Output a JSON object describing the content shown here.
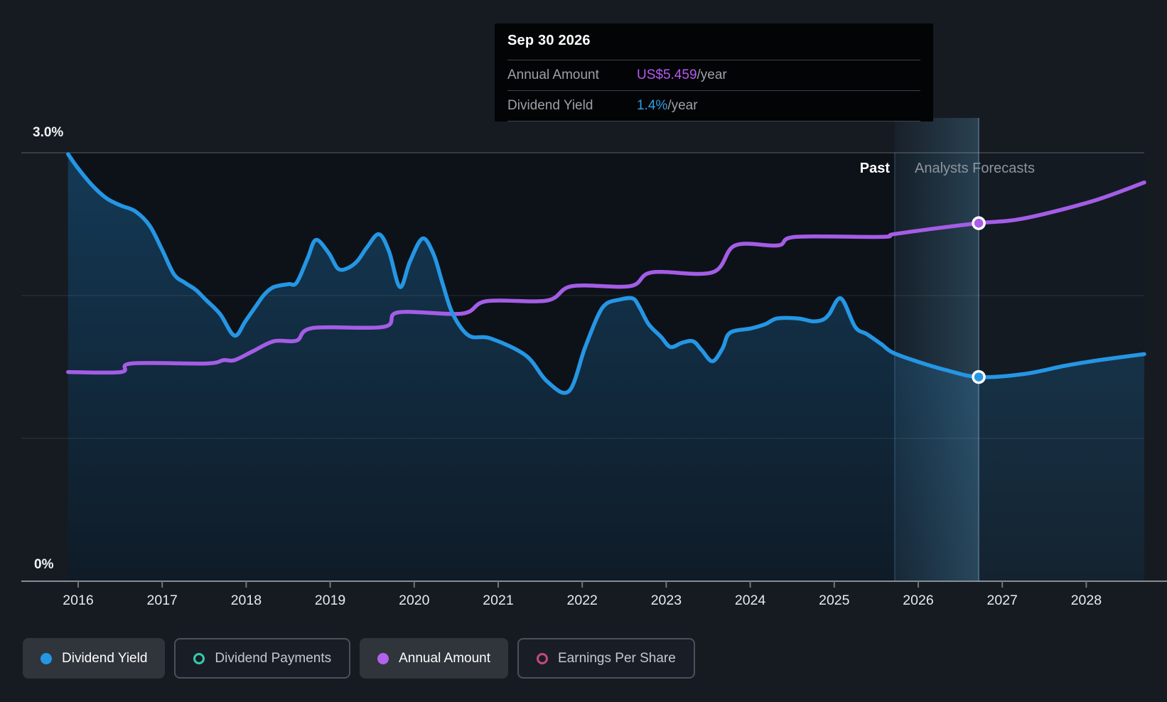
{
  "tooltip": {
    "date": "Sep 30 2026",
    "rows": [
      {
        "label": "Annual Amount",
        "value": "US$5.459",
        "suffix": "/year",
        "color": "#b55af2"
      },
      {
        "label": "Dividend Yield",
        "value": "1.4%",
        "suffix": "/year",
        "color": "#2da0ea"
      }
    ]
  },
  "annotations": {
    "past": "Past",
    "forecast": "Analysts Forecasts"
  },
  "axis": {
    "y_top_label": "3.0%",
    "y_bottom_label": "0%",
    "years": [
      "2016",
      "2017",
      "2018",
      "2019",
      "2020",
      "2021",
      "2022",
      "2023",
      "2024",
      "2025",
      "2026",
      "2027",
      "2028"
    ]
  },
  "legend": {
    "items": [
      {
        "label": "Dividend Yield",
        "swatch": "filled",
        "color": "#2596e4",
        "active": true
      },
      {
        "label": "Dividend Payments",
        "swatch": "ring",
        "color": "#38c9b0",
        "active": false
      },
      {
        "label": "Annual Amount",
        "swatch": "filled",
        "color": "#b163ea",
        "active": true
      },
      {
        "label": "Earnings Per Share",
        "swatch": "ring",
        "color": "#c4497e",
        "active": false
      }
    ]
  },
  "colors": {
    "background": "#161b22",
    "plot_background": "#0d1219",
    "dividend_yield_line": "#2596e4",
    "annual_amount_line": "#a45de6",
    "gridline": "rgba(255,255,255,0.10)",
    "top_gridline": "rgba(255,255,255,0.30)",
    "axis_line": "#878d94",
    "tick_label": "#e7eaed"
  },
  "chart_data": {
    "type": "line",
    "x_axis": {
      "tick_years": [
        2016,
        2017,
        2018,
        2019,
        2020,
        2021,
        2022,
        2023,
        2024,
        2025,
        2026,
        2027,
        2028
      ],
      "range": [
        2015.88,
        2028.69
      ]
    },
    "y_axis": {
      "unit": "%",
      "range": [
        0,
        3
      ],
      "gridlines_pct": [
        0,
        1,
        2,
        3
      ],
      "top_label": "3.0%",
      "bottom_label": "0%"
    },
    "past_forecast_divider_year": 2025.72,
    "selected_point": {
      "date": "Sep 30 2026",
      "year": 2026.72,
      "annual_amount_usd": 5.459,
      "dividend_yield_pct": 1.4
    },
    "series": [
      {
        "name": "Dividend Yield",
        "unit": "%",
        "color": "#2596e4",
        "points": [
          [
            2015.88,
            2.99
          ],
          [
            2016.0,
            2.89
          ],
          [
            2016.17,
            2.77
          ],
          [
            2016.34,
            2.68
          ],
          [
            2016.51,
            2.63
          ],
          [
            2016.68,
            2.59
          ],
          [
            2016.85,
            2.49
          ],
          [
            2017.0,
            2.32
          ],
          [
            2017.14,
            2.15
          ],
          [
            2017.27,
            2.09
          ],
          [
            2017.4,
            2.04
          ],
          [
            2017.52,
            1.97
          ],
          [
            2017.69,
            1.87
          ],
          [
            2017.86,
            1.72
          ],
          [
            2017.99,
            1.82
          ],
          [
            2018.12,
            1.93
          ],
          [
            2018.22,
            2.01
          ],
          [
            2018.33,
            2.06
          ],
          [
            2018.5,
            2.08
          ],
          [
            2018.6,
            2.09
          ],
          [
            2018.73,
            2.26
          ],
          [
            2018.83,
            2.39
          ],
          [
            2018.98,
            2.3
          ],
          [
            2019.09,
            2.19
          ],
          [
            2019.2,
            2.19
          ],
          [
            2019.32,
            2.24
          ],
          [
            2019.44,
            2.34
          ],
          [
            2019.58,
            2.43
          ],
          [
            2019.7,
            2.31
          ],
          [
            2019.83,
            2.06
          ],
          [
            2019.95,
            2.24
          ],
          [
            2020.1,
            2.4
          ],
          [
            2020.23,
            2.29
          ],
          [
            2020.34,
            2.08
          ],
          [
            2020.46,
            1.87
          ],
          [
            2020.65,
            1.72
          ],
          [
            2020.91,
            1.7
          ],
          [
            2021.33,
            1.58
          ],
          [
            2021.58,
            1.4
          ],
          [
            2021.84,
            1.33
          ],
          [
            2022.03,
            1.63
          ],
          [
            2022.18,
            1.85
          ],
          [
            2022.28,
            1.94
          ],
          [
            2022.43,
            1.97
          ],
          [
            2022.6,
            1.98
          ],
          [
            2022.68,
            1.92
          ],
          [
            2022.79,
            1.8
          ],
          [
            2022.94,
            1.71
          ],
          [
            2023.05,
            1.64
          ],
          [
            2023.19,
            1.67
          ],
          [
            2023.32,
            1.68
          ],
          [
            2023.42,
            1.62
          ],
          [
            2023.55,
            1.54
          ],
          [
            2023.67,
            1.63
          ],
          [
            2023.76,
            1.74
          ],
          [
            2024.01,
            1.77
          ],
          [
            2024.18,
            1.8
          ],
          [
            2024.32,
            1.84
          ],
          [
            2024.57,
            1.84
          ],
          [
            2024.74,
            1.82
          ],
          [
            2024.86,
            1.83
          ],
          [
            2024.94,
            1.87
          ],
          [
            2025.08,
            1.98
          ],
          [
            2025.25,
            1.78
          ],
          [
            2025.39,
            1.73
          ],
          [
            2025.56,
            1.66
          ],
          [
            2025.7,
            1.6
          ],
          [
            2025.98,
            1.54
          ],
          [
            2026.32,
            1.48
          ],
          [
            2026.72,
            1.43
          ],
          [
            2027.25,
            1.45
          ],
          [
            2027.76,
            1.51
          ],
          [
            2028.18,
            1.55
          ],
          [
            2028.69,
            1.59
          ]
        ]
      },
      {
        "name": "Annual Amount",
        "unit": "US$/year",
        "color": "#a45de6",
        "points": [
          [
            2015.88,
            3.19
          ],
          [
            2016.51,
            3.19
          ],
          [
            2016.63,
            3.32
          ],
          [
            2017.52,
            3.32
          ],
          [
            2017.73,
            3.37
          ],
          [
            2017.86,
            3.37
          ],
          [
            2018.07,
            3.5
          ],
          [
            2018.33,
            3.66
          ],
          [
            2018.6,
            3.67
          ],
          [
            2018.79,
            3.86
          ],
          [
            2019.64,
            3.88
          ],
          [
            2019.81,
            4.1
          ],
          [
            2020.57,
            4.08
          ],
          [
            2020.86,
            4.27
          ],
          [
            2021.58,
            4.28
          ],
          [
            2021.88,
            4.5
          ],
          [
            2022.57,
            4.5
          ],
          [
            2022.83,
            4.71
          ],
          [
            2023.55,
            4.71
          ],
          [
            2023.82,
            5.12
          ],
          [
            2024.33,
            5.12
          ],
          [
            2024.54,
            5.25
          ],
          [
            2025.56,
            5.25
          ],
          [
            2025.7,
            5.29
          ],
          [
            2026.15,
            5.37
          ],
          [
            2026.72,
            5.46
          ],
          [
            2027.25,
            5.53
          ],
          [
            2028.06,
            5.79
          ],
          [
            2028.69,
            6.08
          ]
        ]
      }
    ],
    "legend_entries": [
      "Dividend Yield",
      "Dividend Payments",
      "Annual Amount",
      "Earnings Per Share"
    ],
    "annotations": {
      "past": "Past",
      "forecast": "Analysts Forecasts"
    }
  }
}
